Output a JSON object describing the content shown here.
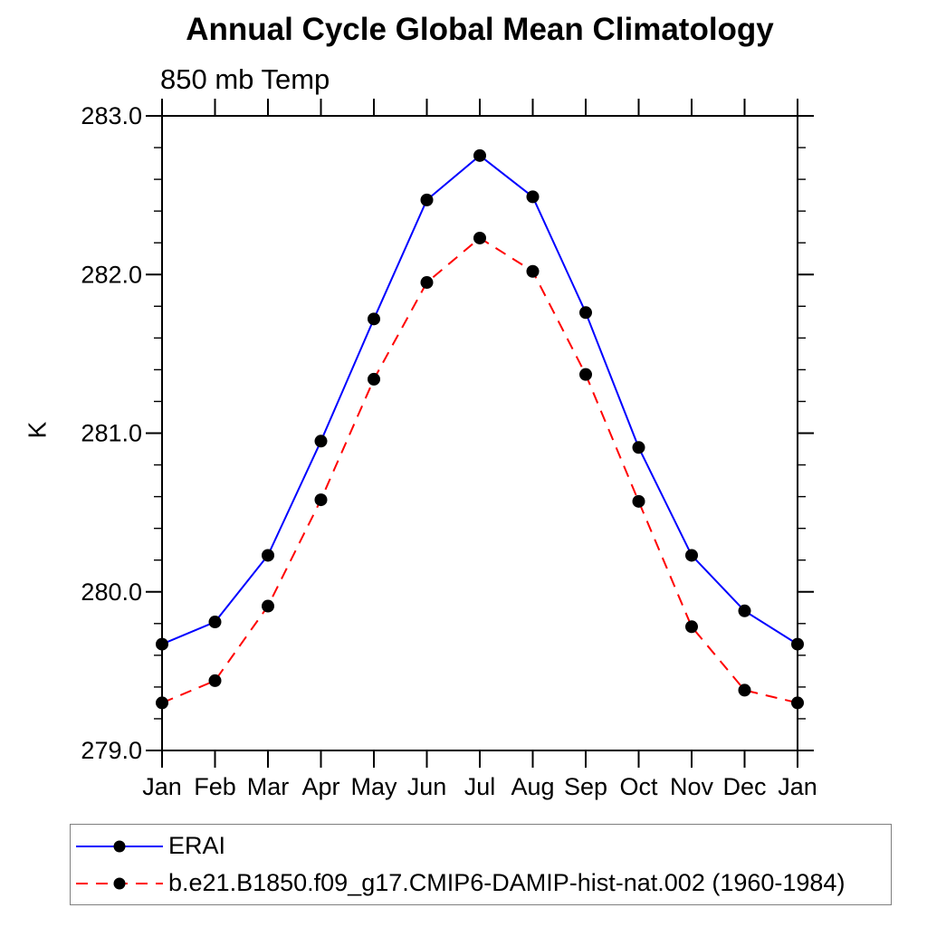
{
  "chart_data": {
    "type": "line",
    "title": "Annual Cycle Global Mean Climatology",
    "subtitle": "850 mb Temp",
    "ylabel": "K",
    "categories": [
      "Jan",
      "Feb",
      "Mar",
      "Apr",
      "May",
      "Jun",
      "Jul",
      "Aug",
      "Sep",
      "Oct",
      "Nov",
      "Dec",
      "Jan"
    ],
    "ylim": [
      279.0,
      283.0
    ],
    "ytick_step": 1.0,
    "yminor_step": 0.2,
    "ytick_labels": [
      "279.0",
      "280.0",
      "281.0",
      "282.0",
      "283.0"
    ],
    "grid": false,
    "legend_position": "bottom-left-box",
    "axis_color": "#000000",
    "marker_shape": "filled-circle",
    "series": [
      {
        "name": "ERAI",
        "color": "#0000ff",
        "style": "solid",
        "marker_color": "#000000",
        "values": [
          279.67,
          279.81,
          280.23,
          280.95,
          281.72,
          282.47,
          282.75,
          282.49,
          281.76,
          280.91,
          280.23,
          279.88,
          279.67
        ]
      },
      {
        "name": "b.e21.B1850.f09_g17.CMIP6-DAMIP-hist-nat.002 (1960-1984)",
        "color": "#ff0000",
        "style": "dashed",
        "marker_color": "#000000",
        "values": [
          279.3,
          279.44,
          279.91,
          280.58,
          281.34,
          281.95,
          282.23,
          282.02,
          281.37,
          280.57,
          279.78,
          279.38,
          279.3
        ]
      }
    ]
  }
}
